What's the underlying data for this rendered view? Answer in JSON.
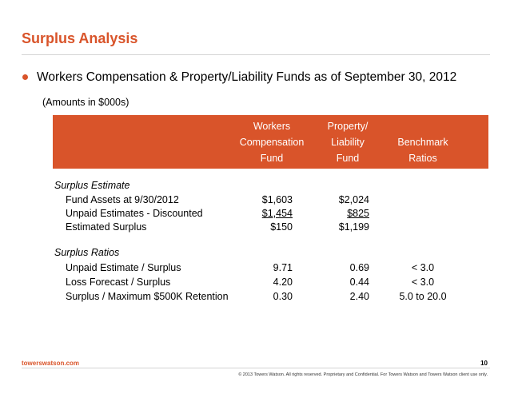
{
  "slide": {
    "title": "Surplus Analysis",
    "bullet": "Workers Compensation & Property/Liability Funds as of September 30, 2012",
    "subnote": "(Amounts in $000s)"
  },
  "table": {
    "headers": [
      {
        "lines": [
          "Workers",
          "Compensation",
          "Fund"
        ]
      },
      {
        "lines": [
          "Property/",
          "Liability",
          "Fund"
        ]
      },
      {
        "lines": [
          "",
          "Benchmark",
          "Ratios"
        ]
      }
    ],
    "sections": [
      {
        "title": "Surplus Estimate",
        "rows": [
          {
            "label": "Fund Assets at 9/30/2012",
            "wc": "$1,603",
            "pl": "$2,024",
            "bench": ""
          },
          {
            "label": "Unpaid Estimates - Discounted",
            "wc": "$1,454",
            "pl": "$825",
            "bench": ""
          },
          {
            "label": "Estimated Surplus",
            "wc": "$150",
            "pl": "$1,199",
            "bench": ""
          }
        ]
      },
      {
        "title": "Surplus Ratios",
        "rows": [
          {
            "label": "Unpaid Estimate / Surplus",
            "wc": "9.71",
            "pl": "0.69",
            "bench": "< 3.0"
          },
          {
            "label": "Loss Forecast / Surplus",
            "wc": "4.20",
            "pl": "0.44",
            "bench": "< 3.0"
          },
          {
            "label": "Surplus / Maximum $500K Retention",
            "wc": "0.30",
            "pl": "2.40",
            "bench": "5.0 to 20.0"
          }
        ]
      }
    ]
  },
  "footer": {
    "site": "towerswatson.com",
    "page": "10",
    "copyright": "© 2013 Towers Watson. All rights reserved. Proprietary and Confidential. For Towers Watson and Towers Watson client use only."
  },
  "colors": {
    "accent": "#d9542a"
  }
}
